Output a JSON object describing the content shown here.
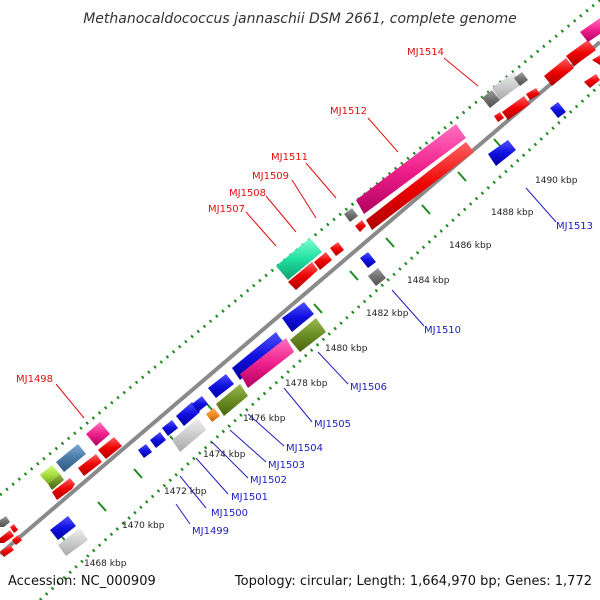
{
  "title": "Methanocaldococcus jannaschii DSM 2661, complete genome",
  "footer": {
    "accession": "Accession: NC_000909",
    "summary": "Topology: circular; Length: 1,664,970 bp; Genes: 1,772"
  },
  "colors": {
    "background": "#ffffff",
    "backbone": "#808080",
    "tick": "#1f8a1f",
    "label_red": "#e01010",
    "label_blue": "#2020c0",
    "callout_red": "#e01010",
    "callout_blue": "#2020c0"
  },
  "scale_ticks": [
    "1468 kbp",
    "1470 kbp",
    "1472 kbp",
    "1474 kbp",
    "1476 kbp",
    "1478 kbp",
    "1480 kbp",
    "1482 kbp",
    "1484 kbp",
    "1486 kbp",
    "1488 kbp",
    "1490 kbp"
  ],
  "gene_labels": {
    "outer": [
      "MJ1498",
      "MJ1507",
      "MJ1508",
      "MJ1509",
      "MJ1511",
      "MJ1512",
      "MJ1514"
    ],
    "inner": [
      "MJ1499",
      "MJ1500",
      "MJ1501",
      "MJ1502",
      "MJ1503",
      "MJ1504",
      "MJ1505",
      "MJ1506",
      "MJ1510",
      "MJ1513"
    ]
  },
  "legend_colors": {
    "forward_gene": "#f01010",
    "reverse_gene": "#1010e0",
    "highlight_pink": "#f0208c",
    "highlight_cyan": "#20e0a0",
    "olive": "#6b8e23",
    "steel": "#4a7aa8",
    "lime": "#a8e040",
    "orange": "#f08c20",
    "gray": "#808080",
    "light_gray": "#cccccc"
  }
}
